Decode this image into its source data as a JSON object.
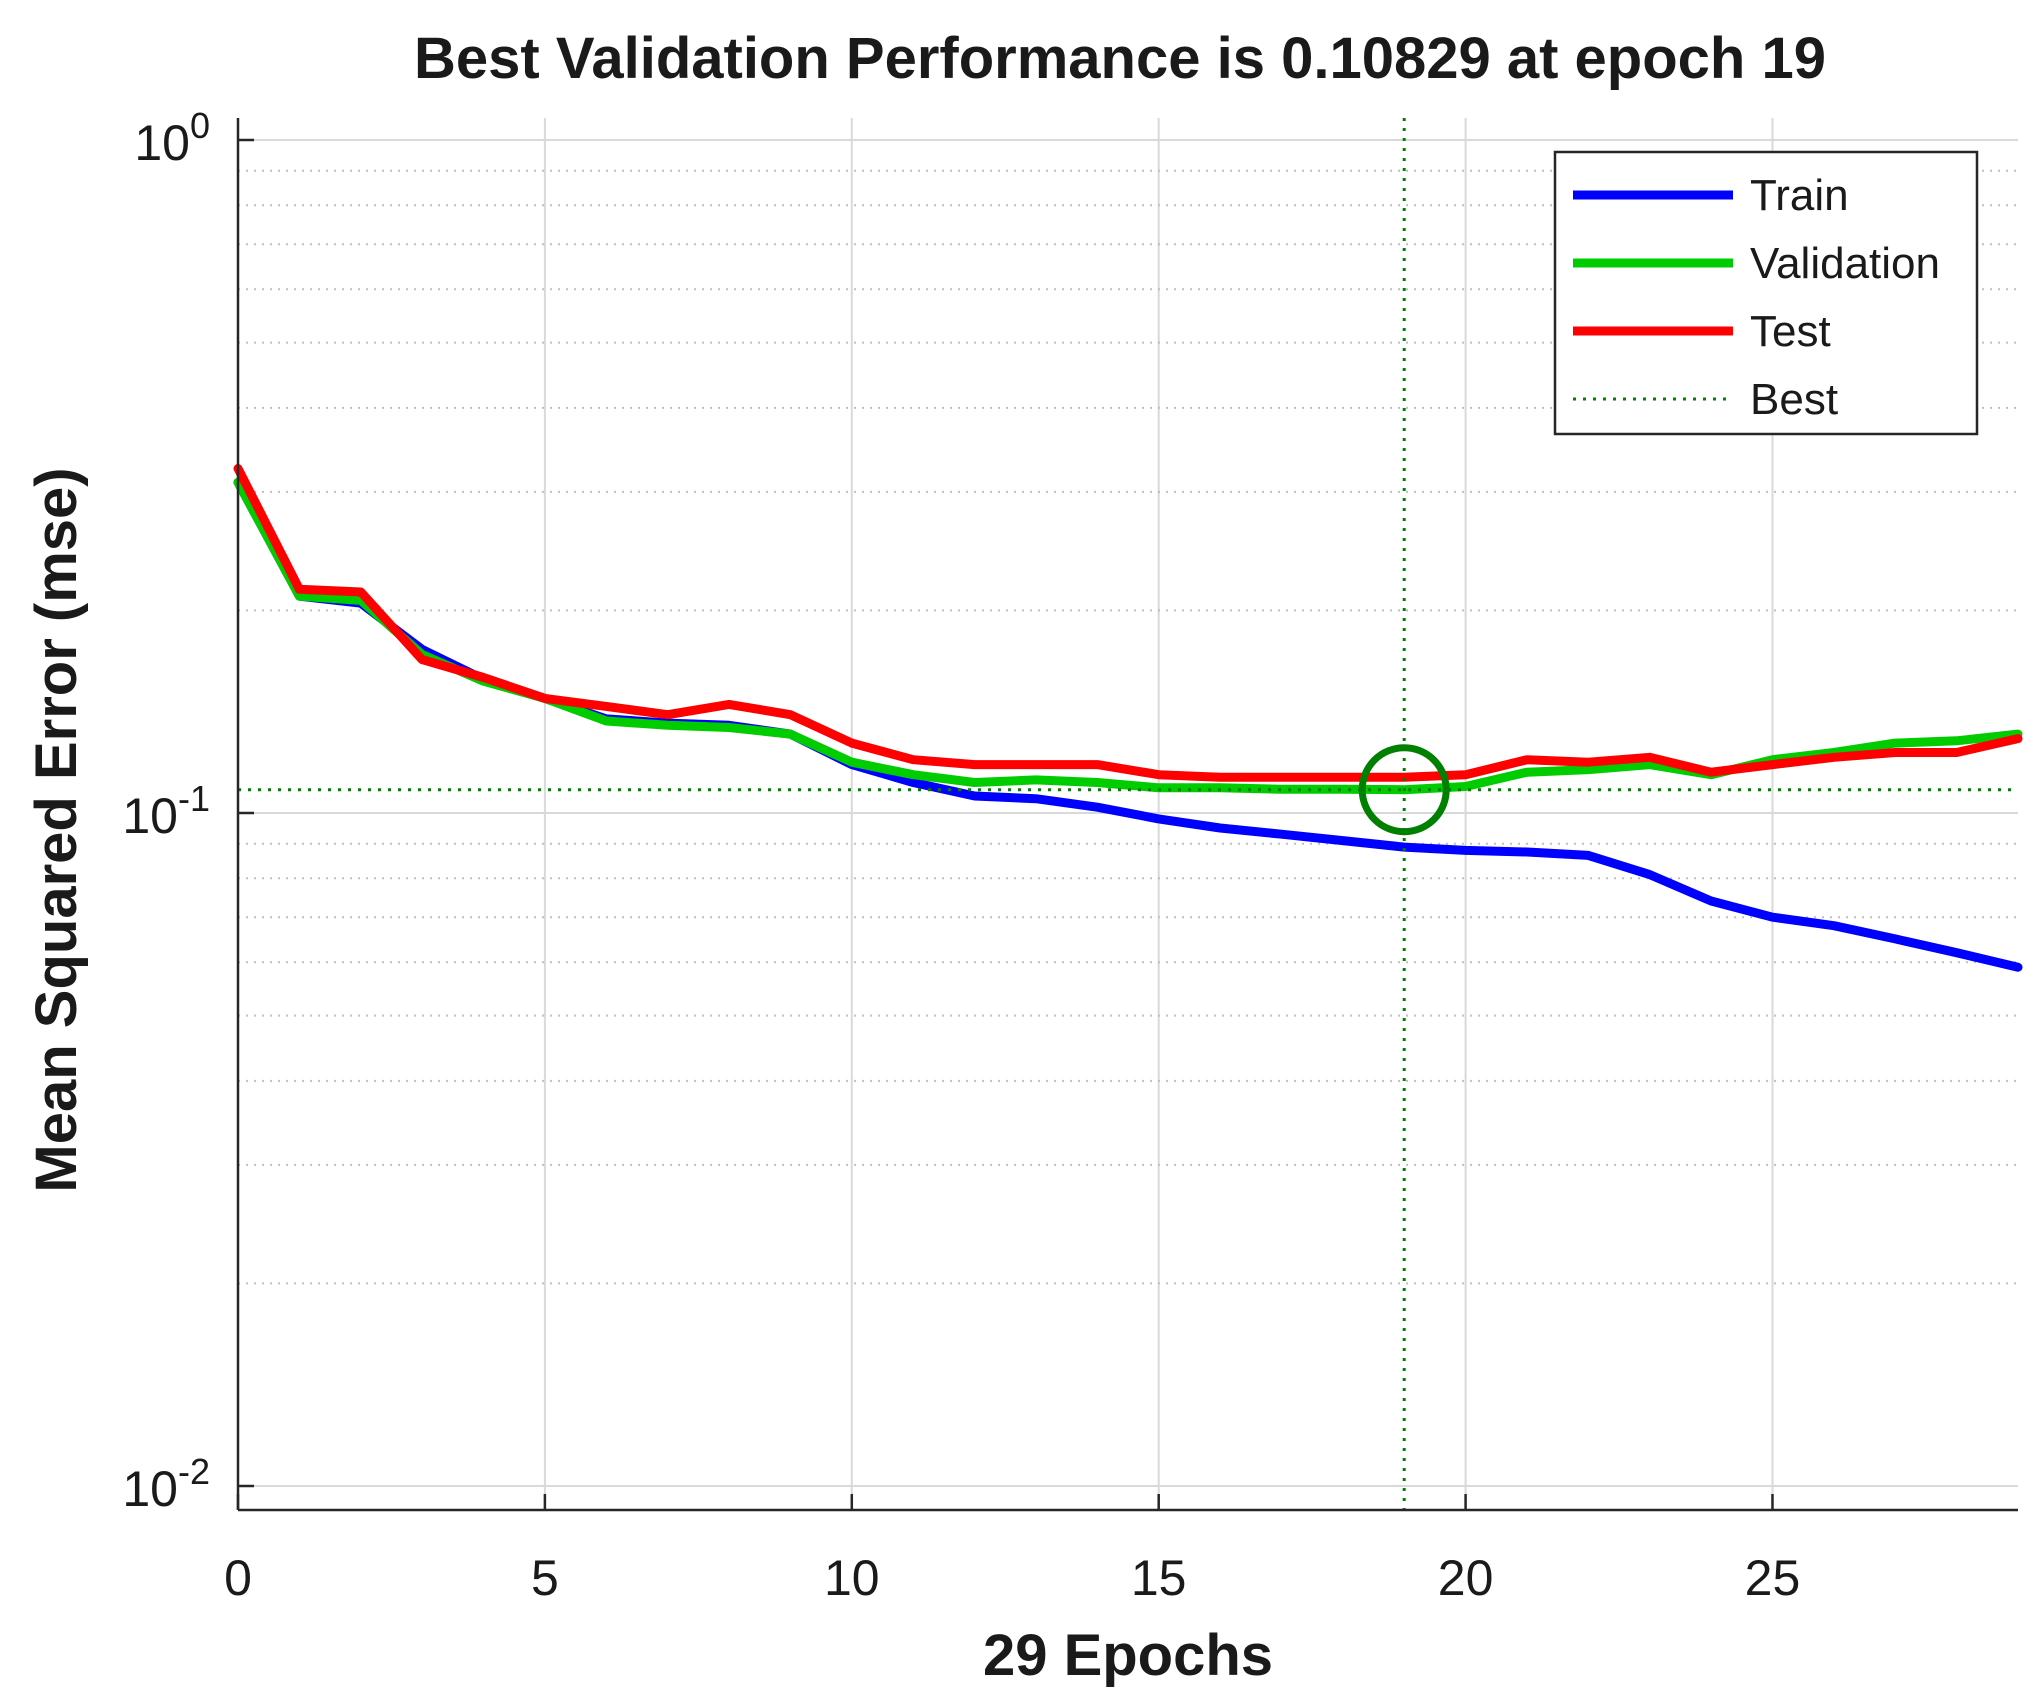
{
  "chart_data": {
    "type": "line",
    "title": "Best Validation Performance is 0.10829 at epoch 19",
    "xlabel": "29 Epochs",
    "ylabel": "Mean Squared Error  (mse)",
    "xlim": [
      0,
      29
    ],
    "ylim": [
      0.008,
      1.1
    ],
    "yscale": "log",
    "grid": true,
    "x_ticks": [
      0,
      5,
      10,
      15,
      20,
      25
    ],
    "x_tick_labels": [
      "0",
      "5",
      "10",
      "15",
      "20",
      "25"
    ],
    "y_ticks": [
      {
        "value": 1,
        "base": "10",
        "exp": "0"
      },
      {
        "value": 0.1,
        "base": "10",
        "exp": "-1"
      },
      {
        "value": 0.01,
        "base": "10",
        "exp": "-2"
      }
    ],
    "x": [
      0,
      1,
      2,
      3,
      4,
      5,
      6,
      7,
      8,
      9,
      10,
      11,
      12,
      13,
      14,
      15,
      16,
      17,
      18,
      19,
      20,
      21,
      22,
      23,
      24,
      25,
      26,
      27,
      28,
      29
    ],
    "series": [
      {
        "name": "Train",
        "color": "#0000ff",
        "values": [
          0.31,
          0.21,
          0.205,
          0.175,
          0.158,
          0.148,
          0.138,
          0.136,
          0.135,
          0.131,
          0.118,
          0.111,
          0.106,
          0.105,
          0.102,
          0.098,
          0.095,
          0.093,
          0.091,
          0.089,
          0.088,
          0.0875,
          0.0865,
          0.081,
          0.074,
          0.07,
          0.068,
          0.065,
          0.062,
          0.059
        ]
      },
      {
        "name": "Validation",
        "color": "#00cc00",
        "values": [
          0.31,
          0.21,
          0.207,
          0.172,
          0.157,
          0.148,
          0.137,
          0.135,
          0.134,
          0.131,
          0.119,
          0.114,
          0.111,
          0.112,
          0.111,
          0.109,
          0.109,
          0.1085,
          0.1085,
          0.10829,
          0.1095,
          0.115,
          0.116,
          0.118,
          0.114,
          0.12,
          0.123,
          0.127,
          0.128,
          0.131
        ]
      },
      {
        "name": "Test",
        "color": "#ff0000",
        "values": [
          0.325,
          0.215,
          0.213,
          0.169,
          0.159,
          0.148,
          0.144,
          0.14,
          0.145,
          0.14,
          0.127,
          0.12,
          0.118,
          0.118,
          0.118,
          0.114,
          0.113,
          0.113,
          0.113,
          0.113,
          0.114,
          0.12,
          0.119,
          0.121,
          0.115,
          0.118,
          0.121,
          0.123,
          0.123,
          0.129
        ]
      }
    ],
    "best": {
      "name": "Best",
      "epoch": 19,
      "value": 0.10829,
      "color": "#008000"
    },
    "legend": {
      "position": "top-right",
      "entries": [
        "Train",
        "Validation",
        "Test",
        "Best"
      ]
    }
  }
}
